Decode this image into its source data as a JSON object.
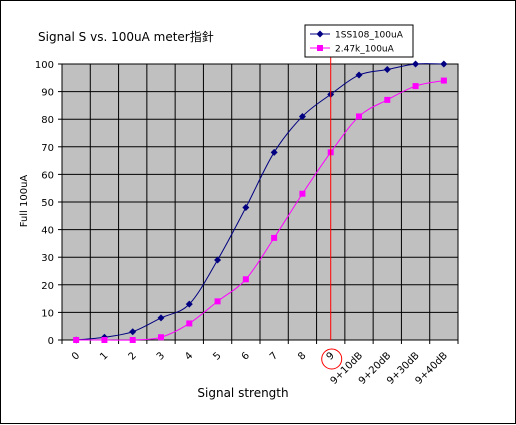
{
  "chart_data": {
    "type": "line",
    "title": "Signal S vs. 100uA meter指針",
    "xlabel": "Signal strength",
    "ylabel": "Full 100uA",
    "categories": [
      "0",
      "1",
      "2",
      "3",
      "4",
      "5",
      "6",
      "7",
      "8",
      "9",
      "9+10dB",
      "9+20dB",
      "9+30dB",
      "9+40dB"
    ],
    "ylim": [
      0,
      100
    ],
    "yticks": [
      0,
      10,
      20,
      30,
      40,
      50,
      60,
      70,
      80,
      90,
      100
    ],
    "grid": true,
    "legend_position": "top-right",
    "plot_background": "#c0c0c0",
    "marker_line_at": "9",
    "circled_tick": "9",
    "series": [
      {
        "name": "1SS108_100uA",
        "color": "#000080",
        "marker": "diamond",
        "values": [
          0,
          1,
          3,
          8,
          13,
          29,
          48,
          68,
          81,
          89,
          96,
          98,
          100,
          100
        ]
      },
      {
        "name": "2.47k_100uA",
        "color": "#ff00ff",
        "marker": "square",
        "values": [
          0,
          0,
          0,
          1,
          6,
          14,
          22,
          37,
          53,
          68,
          81,
          87,
          92,
          94
        ]
      }
    ]
  }
}
